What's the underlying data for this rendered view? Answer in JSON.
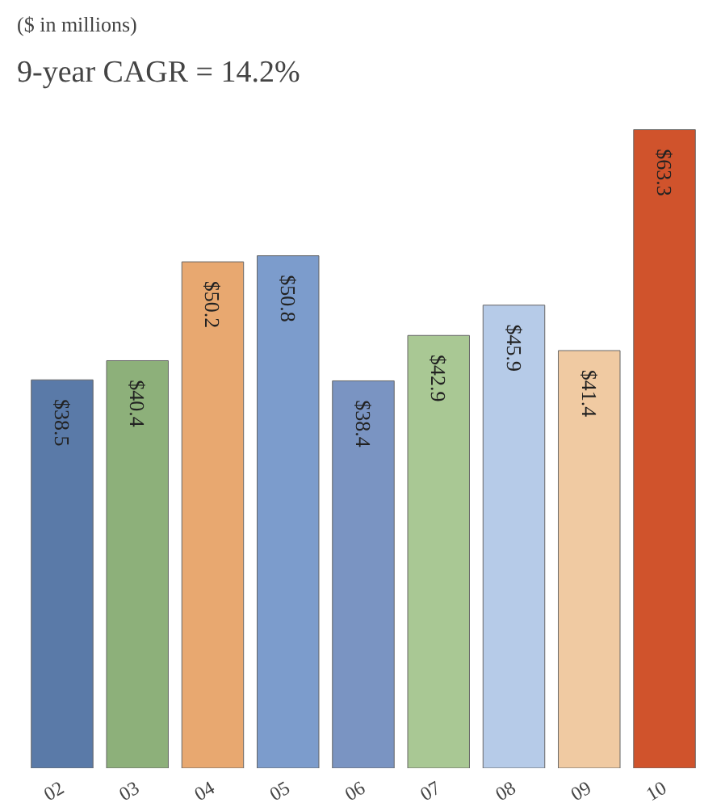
{
  "chart_data": {
    "type": "bar",
    "title": "9-year CAGR = 14.2%",
    "subtitle": "($ in millions)",
    "categories": [
      "02",
      "03",
      "04",
      "05",
      "06",
      "07",
      "08",
      "09",
      "10"
    ],
    "values": [
      38.5,
      40.4,
      50.2,
      50.8,
      38.4,
      42.9,
      45.9,
      41.4,
      63.3
    ],
    "colors": [
      "#5a7aa8",
      "#8db07a",
      "#e8a870",
      "#7c9ccc",
      "#7a94c2",
      "#a9c894",
      "#b6cbe8",
      "#f0caa2",
      "#d0532c"
    ],
    "value_labels": [
      "$38.5",
      "$40.4",
      "$50.2",
      "$50.8",
      "$38.4",
      "$42.9",
      "$45.9",
      "$41.4",
      "$63.3"
    ],
    "grid": false
  }
}
